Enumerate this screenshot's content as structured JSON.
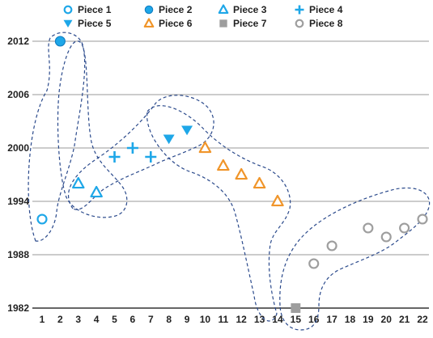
{
  "chart_data": {
    "type": "scatter",
    "x_ticks": [
      1,
      2,
      3,
      4,
      5,
      6,
      7,
      8,
      9,
      10,
      11,
      12,
      13,
      14,
      15,
      16,
      17,
      18,
      19,
      20,
      21,
      22
    ],
    "y_ticks": [
      1982,
      1988,
      1994,
      2000,
      2006,
      2012
    ],
    "xlim": [
      1,
      22
    ],
    "ylim": [
      1982,
      2014
    ],
    "grid": true,
    "legend_position": "top",
    "series": [
      {
        "name": "Piece 1",
        "marker": "circle-open",
        "color": "#1ea7e8",
        "points": [
          [
            1,
            1992
          ]
        ]
      },
      {
        "name": "Piece 2",
        "marker": "circle-filled",
        "color": "#1ea7e8",
        "points": [
          [
            2,
            2012
          ]
        ]
      },
      {
        "name": "Piece 3",
        "marker": "triangle-up-open",
        "color": "#1ea7e8",
        "points": [
          [
            3,
            1996
          ],
          [
            4,
            1995
          ]
        ]
      },
      {
        "name": "Piece 4",
        "marker": "plus",
        "color": "#1ea7e8",
        "points": [
          [
            5,
            1999
          ],
          [
            6,
            2000
          ],
          [
            7,
            1999
          ]
        ]
      },
      {
        "name": "Piece 5",
        "marker": "triangle-down-filled",
        "color": "#1ea7e8",
        "points": [
          [
            8,
            2001
          ],
          [
            9,
            2002
          ]
        ]
      },
      {
        "name": "Piece 6",
        "marker": "triangle-up-open",
        "color": "#f0952a",
        "points": [
          [
            10,
            2000
          ],
          [
            11,
            1998
          ],
          [
            12,
            1997
          ],
          [
            13,
            1996
          ],
          [
            14,
            1994
          ]
        ]
      },
      {
        "name": "Piece 7",
        "marker": "square-filled",
        "color": "#9e9e9e",
        "points": [
          [
            15,
            1982
          ]
        ]
      },
      {
        "name": "Piece 8",
        "marker": "circle-open",
        "color": "#9e9e9e",
        "points": [
          [
            16,
            1987
          ],
          [
            17,
            1989
          ],
          [
            19,
            1991
          ],
          [
            20,
            1990
          ],
          [
            21,
            1991
          ],
          [
            22,
            1992
          ]
        ]
      }
    ]
  }
}
